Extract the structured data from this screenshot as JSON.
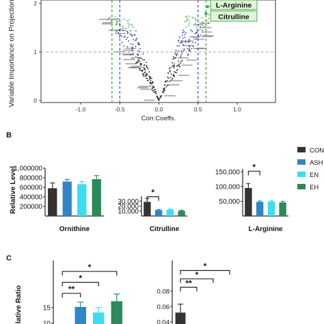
{
  "colors": {
    "CON": "#333333",
    "ASH": "#2e86c9",
    "EN": "#3cdcf2",
    "EH": "#2a8a5a",
    "vip_high": "#3fae3f",
    "vip_mid": "#2233aa",
    "vip_low": "#222222",
    "guide": "#888888",
    "blue_dash": "#2244cc",
    "green_dash": "#2a9a2a"
  },
  "panel_A": {
    "ylabel": "Variable Importance on Projection",
    "xlabel": "Corr.Coeffs.",
    "callouts": [
      "L-Arginine",
      "Citrulline"
    ]
  },
  "panel_B": {
    "letter": "B",
    "ylabel": "Relative Level"
  },
  "panel_C": {
    "letter": "C",
    "ylabel": "Relative Ratio"
  },
  "legend": [
    "CON",
    "ASH",
    "EN",
    "EH"
  ],
  "chart_data": [
    {
      "type": "scatter",
      "id": "vip_volcano",
      "xlabel": "Corr.Coeffs.",
      "ylabel": "Variable Importance on Projection",
      "xlim": [
        -1.0,
        1.0
      ],
      "ylim": [
        0,
        2
      ],
      "x_ticks": [
        "-1.0",
        "-0.5",
        "0.0",
        "0.5",
        "1.0"
      ],
      "y_ticks": [
        "0",
        "1",
        "2"
      ],
      "threshold_y": 1,
      "vlines": [
        {
          "x": -0.5,
          "color": "blue"
        },
        {
          "x": 0.5,
          "color": "blue"
        },
        {
          "x": -0.6,
          "color": "green"
        },
        {
          "x": 0.6,
          "color": "green"
        }
      ],
      "highlighted": [
        {
          "name": "L-Arginine",
          "x": 0.62,
          "y": 1.93
        },
        {
          "name": "Citrulline",
          "x": 0.6,
          "y": 1.79
        }
      ]
    },
    {
      "type": "bar",
      "id": "ornithine",
      "xlabel": "Ornithine",
      "categories": [
        "CON",
        "ASH",
        "EN",
        "EH"
      ],
      "values": [
        580000,
        720000,
        665000,
        770000
      ],
      "errors": [
        110000,
        45000,
        55000,
        75000
      ],
      "ylim": [
        0,
        1000000
      ],
      "y_ticks": [
        "200000",
        "400000",
        "600000",
        "800000",
        "1,000000"
      ],
      "y_tick_values": [
        200000,
        400000,
        600000,
        800000,
        1000000
      ],
      "significance": []
    },
    {
      "type": "bar",
      "id": "citrulline",
      "xlabel": "Citrulline",
      "categories": [
        "CON",
        "ASH",
        "EN",
        "EH"
      ],
      "values": [
        28500,
        12000,
        13000,
        10500
      ],
      "errors": [
        7000,
        1200,
        1100,
        1300
      ],
      "ylim": [
        0,
        40000
      ],
      "y_ticks": [
        "10,000",
        "20,000",
        "30,000"
      ],
      "y_tick_values": [
        10000,
        20000,
        30000
      ],
      "significance": [
        {
          "from": 0,
          "to": 1,
          "label": "*",
          "y": 39000
        }
      ]
    },
    {
      "type": "bar",
      "id": "l_arginine",
      "xlabel": "L-Arginine",
      "categories": [
        "CON",
        "ASH",
        "EN",
        "EH"
      ],
      "values": [
        95000,
        48000,
        49000,
        46000
      ],
      "errors": [
        15000,
        3000,
        3500,
        4000
      ],
      "ylim": [
        0,
        160000
      ],
      "y_ticks": [
        "50,000",
        "100,000",
        "150,000"
      ],
      "y_tick_values": [
        50000,
        100000,
        150000
      ],
      "significance": [
        {
          "from": 0,
          "to": 1,
          "label": "*",
          "y": 152000
        }
      ]
    },
    {
      "type": "bar",
      "id": "ratio_left",
      "categories": [
        "CON",
        "ASH",
        "EN",
        "EH"
      ],
      "values": [
        null,
        15.2,
        13.4,
        17.0
      ],
      "errors": [
        null,
        1.5,
        1.6,
        2.3
      ],
      "ylim": [
        8,
        30
      ],
      "y_ticks": [
        "10",
        "15"
      ],
      "y_tick_values": [
        10,
        15
      ],
      "significance": [
        {
          "from": 0,
          "to": 3,
          "label": "*",
          "y": 26.5
        },
        {
          "from": 0,
          "to": 2,
          "label": "*",
          "y": 23
        },
        {
          "from": 0,
          "to": 1,
          "label": "**",
          "y": 19.5
        }
      ]
    },
    {
      "type": "bar",
      "id": "ratio_right",
      "categories": [
        "CON",
        "ASH",
        "EN",
        "EH"
      ],
      "values": [
        0.052,
        null,
        null,
        null
      ],
      "errors": [
        0.011,
        null,
        null,
        null
      ],
      "ylim": [
        0.03,
        0.12
      ],
      "y_ticks": [
        "0.04",
        "0.06",
        "0.08"
      ],
      "y_tick_values": [
        0.04,
        0.06,
        0.08
      ],
      "significance": [
        {
          "from": 0,
          "to": 3,
          "label": "*",
          "y": 0.107
        },
        {
          "from": 0,
          "to": 2,
          "label": "*",
          "y": 0.096
        },
        {
          "from": 0,
          "to": 1,
          "label": "**",
          "y": 0.085
        }
      ]
    }
  ]
}
